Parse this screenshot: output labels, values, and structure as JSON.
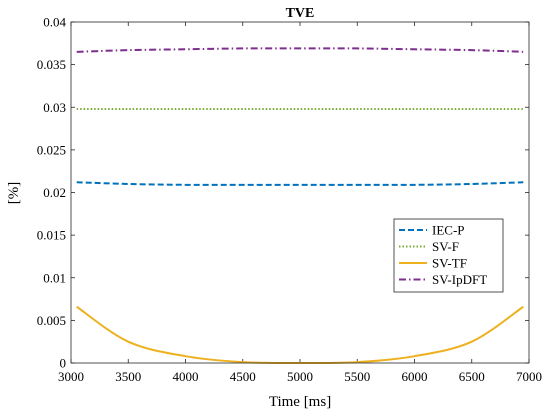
{
  "chart_data": {
    "type": "line",
    "title": "TVE",
    "xlabel": "Time [ms]",
    "ylabel": "[%]",
    "xlim": [
      3000,
      7000
    ],
    "ylim": [
      0,
      0.04
    ],
    "grid": false,
    "legend_position": "right",
    "xticks": [
      3000,
      3500,
      4000,
      4500,
      5000,
      5500,
      6000,
      6500,
      7000
    ],
    "xtick_labels": [
      "3000",
      "3500",
      "4000",
      "4500",
      "5000",
      "5500",
      "6000",
      "6500",
      "7000"
    ],
    "yticks": [
      0,
      0.005,
      0.01,
      0.015,
      0.02,
      0.025,
      0.03,
      0.035,
      0.04
    ],
    "ytick_labels": [
      "0",
      "0.005",
      "0.01",
      "0.015",
      "0.02",
      "0.025",
      "0.03",
      "0.035",
      "0.04"
    ],
    "x": [
      3050,
      3500,
      4000,
      4500,
      5000,
      5500,
      6000,
      6500,
      6950
    ],
    "series": [
      {
        "name": "IEC-P",
        "color": "#0072BD",
        "dash": "dashed",
        "values": [
          0.0212,
          0.021,
          0.0209,
          0.0209,
          0.0209,
          0.0209,
          0.0209,
          0.021,
          0.0212
        ]
      },
      {
        "name": "SV-F",
        "color": "#77AC30",
        "dash": "dotted",
        "values": [
          0.0298,
          0.0298,
          0.0298,
          0.0298,
          0.0298,
          0.0298,
          0.0298,
          0.0298,
          0.0298
        ]
      },
      {
        "name": "SV-TF",
        "color": "#EDB120",
        "dash": "solid",
        "values": [
          0.0066,
          0.0025,
          0.0008,
          0.0001,
          0.0,
          0.0001,
          0.0008,
          0.0025,
          0.0066
        ]
      },
      {
        "name": "SV-IpDFT",
        "color": "#7E2F8E",
        "dash": "dashdot",
        "values": [
          0.0365,
          0.0367,
          0.0368,
          0.0369,
          0.0369,
          0.0369,
          0.0368,
          0.0367,
          0.0365
        ]
      }
    ]
  }
}
